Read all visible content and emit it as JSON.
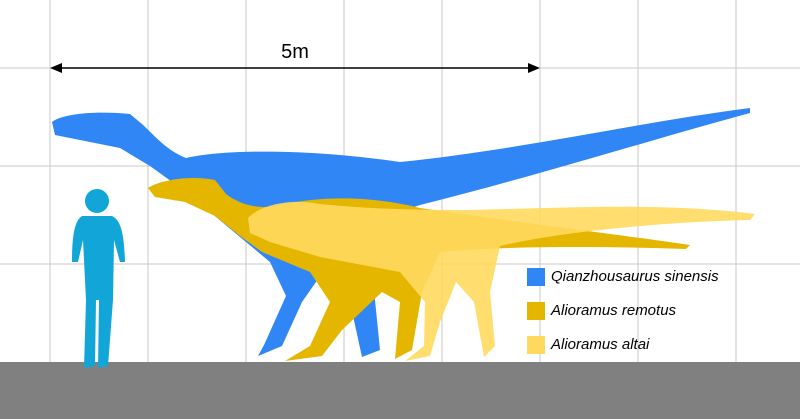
{
  "scale_label": "5m",
  "legend": [
    {
      "label": "Qianzhousaurus sinensis",
      "color": "#2f86f4"
    },
    {
      "label": "Alioramus remotus",
      "color": "#e4b600"
    },
    {
      "label": "Alioramus altai",
      "color": "#ffd95e"
    }
  ]
}
